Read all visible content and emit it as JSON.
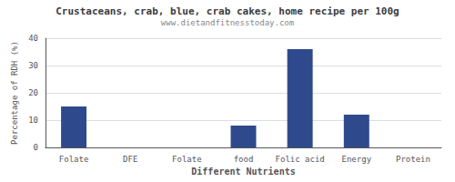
{
  "chart_data": {
    "type": "bar",
    "title": "Crustaceans, crab, blue, crab cakes, home recipe per 100g",
    "subtitle": "www.dietandfitnesstoday.com",
    "xlabel": "Different Nutrients",
    "ylabel": "Percentage of RDH (%)",
    "categories": [
      "Folate",
      "DFE",
      "Folate",
      "food",
      "Folic acid",
      "Energy",
      "Protein"
    ],
    "values": [
      15.0,
      0.0,
      0.0,
      8.0,
      36.0,
      12.0,
      0.0
    ],
    "color": "#2e4a8c",
    "ylim": [
      0,
      40
    ],
    "yticks": [
      0,
      10,
      20,
      30,
      40
    ],
    "grid": true
  }
}
